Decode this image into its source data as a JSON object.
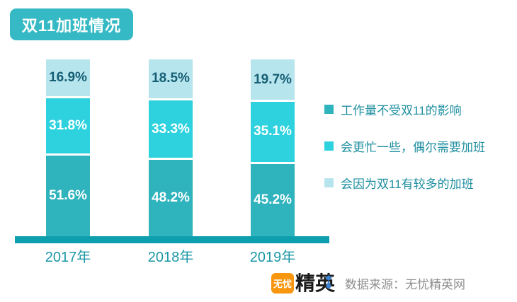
{
  "title": {
    "label": "双11加班情况"
  },
  "chart_data": {
    "type": "bar",
    "subtype": "stacked-vertical",
    "title": "双11加班情况",
    "categories": [
      "2017年",
      "2018年",
      "2019年"
    ],
    "series": [
      {
        "name": "工作量不受双11的影响",
        "color": "#2fb3bd",
        "label_color": "#ffffff",
        "values": [
          51.6,
          48.2,
          45.2
        ]
      },
      {
        "name": "会更忙一些，偶尔需要加班",
        "color": "#2ed2de",
        "label_color": "#ffffff",
        "values": [
          31.8,
          33.3,
          35.1
        ]
      },
      {
        "name": "会因为双11有较多的加班",
        "color": "#b7e5ee",
        "label_color": "#155e74",
        "values": [
          16.9,
          18.5,
          19.7
        ]
      }
    ],
    "value_format": "percent",
    "ylim": [
      0,
      100
    ],
    "grid": false,
    "legend_position": "right",
    "axis_color": "#0d9fae"
  },
  "footer": {
    "logo_badge": "无忧",
    "logo_text": "精英",
    "tie_color": "#3b82d0",
    "source": "数据来源：无忧精英网"
  },
  "colors": {
    "title_badge_bg": "#35b9c4",
    "title_text": "#ffffff",
    "x_label_text": "#1c97a7",
    "legend_text": "#1f8fa0",
    "source_text": "#8f8f8f",
    "logo_badge_bg": "#f8960f"
  }
}
